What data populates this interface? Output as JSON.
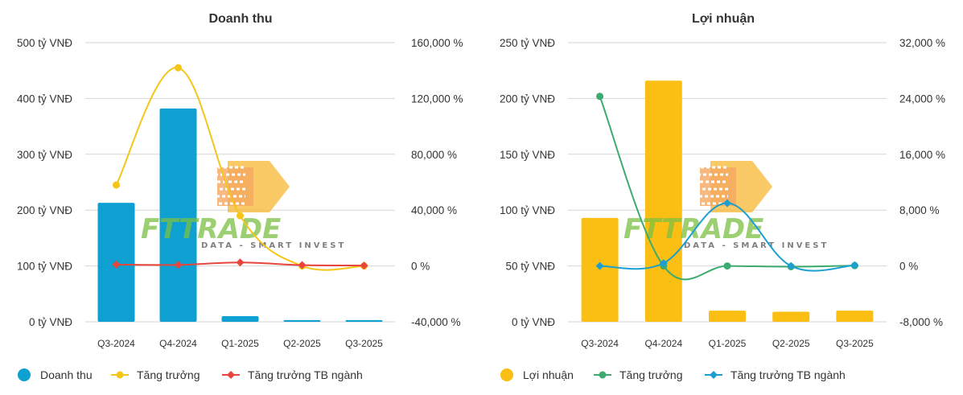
{
  "colors": {
    "grid": "#d6d6d6",
    "revenue_bar": "#0ea0d0",
    "revenue_growth": "#f5c518",
    "revenue_industry": "#e8453c",
    "profit_bar": "#fbbf13",
    "profit_growth": "#3daa6f",
    "profit_industry": "#1a9fd0"
  },
  "watermark": {
    "text": "FTTRADE",
    "subtext": "DATA - SMART INVEST"
  },
  "chart_data": [
    {
      "type": "bar",
      "title": "Doanh thu",
      "categories": [
        "Q3-2024",
        "Q4-2024",
        "Q1-2025",
        "Q2-2025",
        "Q3-2025"
      ],
      "y_left": {
        "ticks": [
          "0 tỷ VNĐ",
          "100 tỷ VNĐ",
          "200 tỷ VNĐ",
          "300 tỷ VNĐ",
          "400 tỷ VNĐ",
          "500 tỷ VNĐ"
        ],
        "range": [
          0,
          500
        ]
      },
      "y_right": {
        "ticks": [
          "-40,000 %",
          "0 %",
          "40,000 %",
          "80,000 %",
          "120,000 %",
          "160,000 %"
        ],
        "range": [
          -40000,
          160000
        ]
      },
      "series": [
        {
          "name": "Doanh thu",
          "kind": "bar",
          "axis": "left",
          "color": "#0ea0d0",
          "values": [
            213,
            382,
            10,
            3,
            3
          ]
        },
        {
          "name": "Tăng trưởng",
          "kind": "line",
          "axis": "right",
          "color": "#f5c518",
          "values": [
            58000,
            142000,
            36000,
            0,
            0
          ],
          "smooth": true
        },
        {
          "name": "Tăng trưởng TB ngành",
          "kind": "line",
          "axis": "right",
          "color": "#e8453c",
          "values": [
            1000,
            800,
            2500,
            600,
            300
          ],
          "smooth": true
        }
      ],
      "legend_position": "bottom",
      "grid": true
    },
    {
      "type": "bar",
      "title": "Lợi nhuận",
      "categories": [
        "Q3-2024",
        "Q4-2024",
        "Q1-2025",
        "Q2-2025",
        "Q3-2025"
      ],
      "y_left": {
        "ticks": [
          "0 tỷ VNĐ",
          "50 tỷ VNĐ",
          "100 tỷ VNĐ",
          "150 tỷ VNĐ",
          "200 tỷ VNĐ",
          "250 tỷ VNĐ"
        ],
        "range": [
          0,
          250
        ]
      },
      "y_right": {
        "ticks": [
          "-8,000 %",
          "0 %",
          "8,000 %",
          "16,000 %",
          "24,000 %",
          "32,000 %"
        ],
        "range": [
          -8000,
          32000
        ]
      },
      "series": [
        {
          "name": "Lợi nhuận",
          "kind": "bar",
          "axis": "left",
          "color": "#fbbf13",
          "values": [
            93,
            216,
            10,
            9,
            10
          ]
        },
        {
          "name": "Tăng trưởng",
          "kind": "line",
          "axis": "right",
          "color": "#3daa6f",
          "values": [
            24300,
            0,
            0,
            -100,
            50
          ],
          "smooth": true
        },
        {
          "name": "Tăng trưởng TB ngành",
          "kind": "line",
          "axis": "right",
          "color": "#1a9fd0",
          "values": [
            0,
            400,
            9000,
            0,
            100
          ],
          "smooth": true
        }
      ],
      "legend_position": "bottom",
      "grid": true
    }
  ]
}
